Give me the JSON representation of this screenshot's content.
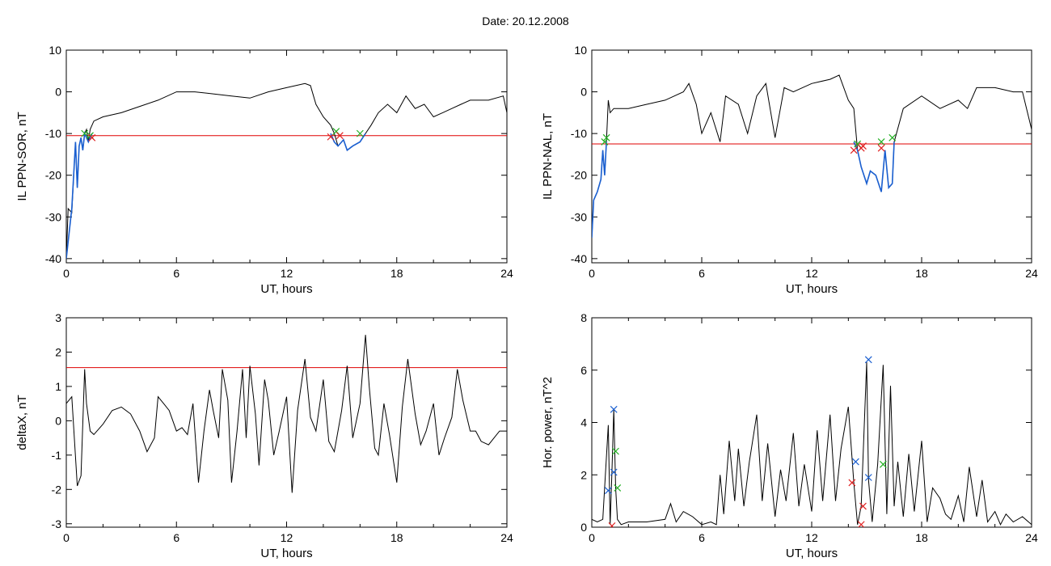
{
  "title": "Date:  20.12.2008",
  "colors": {
    "trace": "#000000",
    "threshold": "#e00000",
    "highlight": "#1a5fd0",
    "marker_green": "#22b022",
    "marker_red": "#e02020",
    "marker_blue": "#1a5fd0"
  },
  "chart_data": [
    {
      "type": "line",
      "ylabel": "IL PPN-SOR, nT",
      "xlabel": "UT, hours",
      "xlim": [
        0,
        24
      ],
      "ylim": [
        -41,
        10
      ],
      "xticks": [
        0,
        6,
        12,
        18,
        24
      ],
      "yticks": [
        10,
        0,
        -10,
        -20,
        -30,
        -40
      ],
      "grid": false,
      "threshold": -10.5,
      "series": [
        {
          "x": [
            0,
            0.1,
            0.3,
            0.5,
            0.6,
            0.7,
            0.8,
            0.9,
            1.0,
            1.1,
            1.2,
            1.3,
            1.5,
            2.0,
            3.0,
            4.0,
            5.0,
            6.0,
            7.0,
            8.0,
            9.0,
            10.0,
            11.0,
            12.0,
            13.0,
            13.3,
            13.6,
            14.0,
            14.4,
            14.6,
            14.8,
            15.1,
            15.3,
            15.6,
            16.0,
            16.3,
            16.6,
            17.0,
            17.5,
            18.0,
            18.5,
            19.0,
            19.5,
            20.0,
            20.5,
            21.0,
            21.5,
            22.0,
            23.0,
            23.8,
            24.0
          ],
          "y": [
            -40,
            -28,
            -29,
            -12,
            -23,
            -13,
            -11,
            -14,
            -10,
            -9,
            -12,
            -9,
            -7,
            -6,
            -5,
            -3.5,
            -2,
            0,
            0,
            -0.5,
            -1,
            -1.5,
            0,
            1,
            2,
            1.5,
            -3,
            -6,
            -8,
            -10,
            -13,
            -11.5,
            -14,
            -13,
            -12,
            -10,
            -8,
            -5,
            -3,
            -5,
            -1,
            -4,
            -3,
            -6,
            -5,
            -4,
            -3,
            -2,
            -2,
            -1,
            -5
          ]
        }
      ],
      "highlight": [
        {
          "x": [
            0.0,
            0.3,
            0.5,
            0.6,
            0.7,
            0.8,
            0.9,
            1.0,
            1.2,
            1.4
          ],
          "y": [
            -40,
            -28,
            -12,
            -23,
            -13,
            -11,
            -14,
            -10,
            -12,
            -10
          ]
        },
        {
          "x": [
            14.4,
            14.6,
            14.8,
            15.1,
            15.3,
            15.6,
            16.0,
            16.3
          ],
          "y": [
            -10,
            -12,
            -13,
            -11.5,
            -14,
            -13,
            -12,
            -10
          ]
        }
      ],
      "markers": [
        {
          "x": 1.0,
          "y": -10,
          "color": "green"
        },
        {
          "x": 1.3,
          "y": -10.5,
          "color": "green"
        },
        {
          "x": 1.4,
          "y": -11,
          "color": "red"
        },
        {
          "x": 14.4,
          "y": -10.8,
          "color": "red"
        },
        {
          "x": 14.7,
          "y": -9.5,
          "color": "green"
        },
        {
          "x": 14.9,
          "y": -10.5,
          "color": "red"
        },
        {
          "x": 16.0,
          "y": -10,
          "color": "green"
        }
      ]
    },
    {
      "type": "line",
      "ylabel": "IL PPN-NAL, nT",
      "xlabel": "UT, hours",
      "xlim": [
        0,
        24
      ],
      "ylim": [
        -41,
        10
      ],
      "xticks": [
        0,
        6,
        12,
        18,
        24
      ],
      "yticks": [
        10,
        0,
        -10,
        -20,
        -30,
        -40
      ],
      "grid": false,
      "threshold": -12.5,
      "series": [
        {
          "x": [
            0,
            0.1,
            0.3,
            0.5,
            0.6,
            0.7,
            0.8,
            0.9,
            1.0,
            1.2,
            1.5,
            2.0,
            3.0,
            4.0,
            5.0,
            5.3,
            5.7,
            6.0,
            6.5,
            7.0,
            7.3,
            8.0,
            8.5,
            9.0,
            9.5,
            10.0,
            10.5,
            11.0,
            12.0,
            13.0,
            13.5,
            14.0,
            14.3,
            14.5,
            14.7,
            15.0,
            15.2,
            15.5,
            15.8,
            16.0,
            16.2,
            16.4,
            16.5,
            17.0,
            18.0,
            19.0,
            20.0,
            20.5,
            21.0,
            22.0,
            23.0,
            23.5,
            24.0
          ],
          "y": [
            -35,
            -26,
            -24,
            -21,
            -14,
            -20,
            -12,
            -2,
            -5,
            -4,
            -4,
            -4,
            -3,
            -2,
            0,
            2,
            -3,
            -10,
            -5,
            -12,
            -1,
            -3,
            -10,
            -1,
            2,
            -11,
            1,
            0,
            2,
            3,
            4,
            -2,
            -4,
            -14,
            -18,
            -22,
            -19,
            -20,
            -24,
            -14,
            -23,
            -22,
            -12,
            -4,
            -1,
            -4,
            -2,
            -4,
            1,
            1,
            0,
            0,
            -9
          ]
        }
      ],
      "highlight": [
        {
          "x": [
            0.0,
            0.1,
            0.3,
            0.5,
            0.6,
            0.7,
            0.8
          ],
          "y": [
            -35,
            -26,
            -24,
            -21,
            -14,
            -20,
            -12
          ]
        },
        {
          "x": [
            14.3,
            14.5,
            14.7,
            15.0,
            15.2,
            15.5,
            15.8,
            16.0,
            16.2,
            16.4,
            16.5
          ],
          "y": [
            -12,
            -14,
            -18,
            -22,
            -19,
            -20,
            -24,
            -14,
            -23,
            -22,
            -12
          ]
        }
      ],
      "markers": [
        {
          "x": 0.7,
          "y": -12,
          "color": "green"
        },
        {
          "x": 0.8,
          "y": -11,
          "color": "green"
        },
        {
          "x": 14.3,
          "y": -14,
          "color": "red"
        },
        {
          "x": 14.5,
          "y": -12.5,
          "color": "green"
        },
        {
          "x": 14.7,
          "y": -13.5,
          "color": "red"
        },
        {
          "x": 14.8,
          "y": -13,
          "color": "red"
        },
        {
          "x": 15.8,
          "y": -12,
          "color": "green"
        },
        {
          "x": 15.8,
          "y": -13.5,
          "color": "red"
        },
        {
          "x": 16.4,
          "y": -11,
          "color": "green"
        }
      ]
    },
    {
      "type": "line",
      "ylabel": "deltaX, nT",
      "xlabel": "UT, hours",
      "xlim": [
        0,
        24
      ],
      "ylim": [
        -3.1,
        3
      ],
      "xticks": [
        0,
        6,
        12,
        18,
        24
      ],
      "yticks": [
        3,
        2,
        1,
        0,
        -1,
        -2,
        -3
      ],
      "grid": false,
      "threshold": 1.55,
      "series": [
        {
          "x": [
            0,
            0.3,
            0.6,
            0.8,
            1.0,
            1.1,
            1.3,
            1.5,
            2.0,
            2.5,
            3.0,
            3.5,
            4.0,
            4.4,
            4.8,
            5.0,
            5.3,
            5.6,
            6.0,
            6.3,
            6.6,
            6.9,
            7.2,
            7.5,
            7.8,
            8.0,
            8.3,
            8.5,
            8.8,
            9.0,
            9.3,
            9.6,
            9.8,
            10.0,
            10.3,
            10.5,
            10.8,
            11.0,
            11.3,
            11.6,
            12.0,
            12.3,
            12.6,
            13.0,
            13.3,
            13.6,
            14.0,
            14.3,
            14.6,
            15.0,
            15.3,
            15.6,
            16.0,
            16.3,
            16.5,
            16.8,
            17.0,
            17.3,
            17.6,
            18.0,
            18.3,
            18.6,
            19.0,
            19.3,
            19.6,
            20.0,
            20.3,
            20.6,
            21.0,
            21.3,
            21.6,
            22.0,
            22.3,
            22.6,
            23.0,
            23.3,
            23.6,
            24.0
          ],
          "y": [
            0.5,
            0.7,
            -1.9,
            -1.6,
            1.5,
            0.5,
            -0.3,
            -0.4,
            -0.1,
            0.3,
            0.4,
            0.2,
            -0.3,
            -0.9,
            -0.5,
            0.7,
            0.5,
            0.3,
            -0.3,
            -0.2,
            -0.4,
            0.5,
            -1.8,
            -0.3,
            0.9,
            0.3,
            -0.5,
            1.5,
            0.6,
            -1.8,
            -0.3,
            1.5,
            -0.5,
            1.6,
            0.2,
            -1.3,
            1.2,
            0.6,
            -1.0,
            -0.3,
            0.7,
            -2.1,
            0.3,
            1.8,
            0.1,
            -0.3,
            1.2,
            -0.6,
            -0.9,
            0.3,
            1.6,
            -0.5,
            0.5,
            2.5,
            1.0,
            -0.8,
            -1.0,
            0.5,
            -0.4,
            -1.8,
            0.4,
            1.8,
            0.2,
            -0.7,
            -0.3,
            0.5,
            -1.0,
            -0.5,
            0.1,
            1.5,
            0.6,
            -0.3,
            -0.3,
            -0.6,
            -0.7,
            -0.5,
            -0.3,
            -0.3
          ]
        }
      ],
      "highlight": [],
      "markers": []
    },
    {
      "type": "line",
      "ylabel": "Hor. power, nT^2",
      "xlabel": "UT, hours",
      "xlim": [
        0,
        24
      ],
      "ylim": [
        0,
        8
      ],
      "xticks": [
        0,
        6,
        12,
        18,
        24
      ],
      "yticks": [
        8,
        6,
        4,
        2,
        0
      ],
      "grid": false,
      "threshold": null,
      "series": [
        {
          "x": [
            0,
            0.3,
            0.6,
            0.9,
            1.0,
            1.1,
            1.2,
            1.3,
            1.4,
            1.6,
            2.0,
            3.0,
            4.0,
            4.3,
            4.6,
            5.0,
            5.5,
            6.0,
            6.5,
            6.8,
            7.0,
            7.2,
            7.5,
            7.8,
            8.0,
            8.3,
            8.6,
            9.0,
            9.3,
            9.6,
            10.0,
            10.3,
            10.6,
            11.0,
            11.3,
            11.6,
            12.0,
            12.3,
            12.6,
            13.0,
            13.3,
            13.6,
            14.0,
            14.3,
            14.5,
            14.7,
            15.0,
            15.1,
            15.3,
            15.6,
            15.9,
            16.1,
            16.3,
            16.5,
            16.7,
            17.0,
            17.3,
            17.6,
            18.0,
            18.3,
            18.6,
            19.0,
            19.3,
            19.6,
            20.0,
            20.3,
            20.6,
            21.0,
            21.3,
            21.6,
            22.0,
            22.3,
            22.6,
            23.0,
            23.5,
            24.0
          ],
          "y": [
            0.3,
            0.2,
            0.3,
            3.9,
            0.1,
            2.1,
            4.5,
            1.5,
            0.3,
            0.1,
            0.2,
            0.2,
            0.3,
            0.9,
            0.2,
            0.6,
            0.4,
            0.1,
            0.2,
            0.1,
            2.0,
            0.5,
            3.3,
            1.0,
            3.0,
            0.8,
            2.5,
            4.3,
            1.0,
            3.2,
            0.4,
            2.2,
            1.0,
            3.6,
            0.8,
            2.4,
            0.6,
            3.7,
            1.0,
            4.3,
            1.0,
            3.0,
            4.6,
            1.7,
            0.1,
            0.8,
            6.3,
            1.8,
            0.2,
            2.4,
            6.2,
            0.5,
            5.4,
            0.8,
            2.5,
            0.4,
            2.8,
            0.6,
            3.3,
            0.2,
            1.5,
            1.1,
            0.5,
            0.3,
            1.2,
            0.2,
            2.3,
            0.4,
            1.8,
            0.2,
            0.6,
            0.1,
            0.5,
            0.2,
            0.4,
            0.1
          ]
        }
      ],
      "highlight": [],
      "markers": [
        {
          "x": 0.9,
          "y": 1.4,
          "color": "blue"
        },
        {
          "x": 1.1,
          "y": 0.05,
          "color": "red"
        },
        {
          "x": 1.2,
          "y": 4.5,
          "color": "blue"
        },
        {
          "x": 1.2,
          "y": 2.1,
          "color": "blue"
        },
        {
          "x": 1.3,
          "y": 2.9,
          "color": "green"
        },
        {
          "x": 1.4,
          "y": 1.5,
          "color": "green"
        },
        {
          "x": 14.2,
          "y": 1.7,
          "color": "red"
        },
        {
          "x": 14.4,
          "y": 2.5,
          "color": "blue"
        },
        {
          "x": 14.7,
          "y": 0.1,
          "color": "red"
        },
        {
          "x": 14.8,
          "y": 0.8,
          "color": "red"
        },
        {
          "x": 15.1,
          "y": 6.4,
          "color": "blue"
        },
        {
          "x": 15.1,
          "y": 1.9,
          "color": "blue"
        },
        {
          "x": 15.9,
          "y": 2.4,
          "color": "green"
        }
      ]
    }
  ]
}
